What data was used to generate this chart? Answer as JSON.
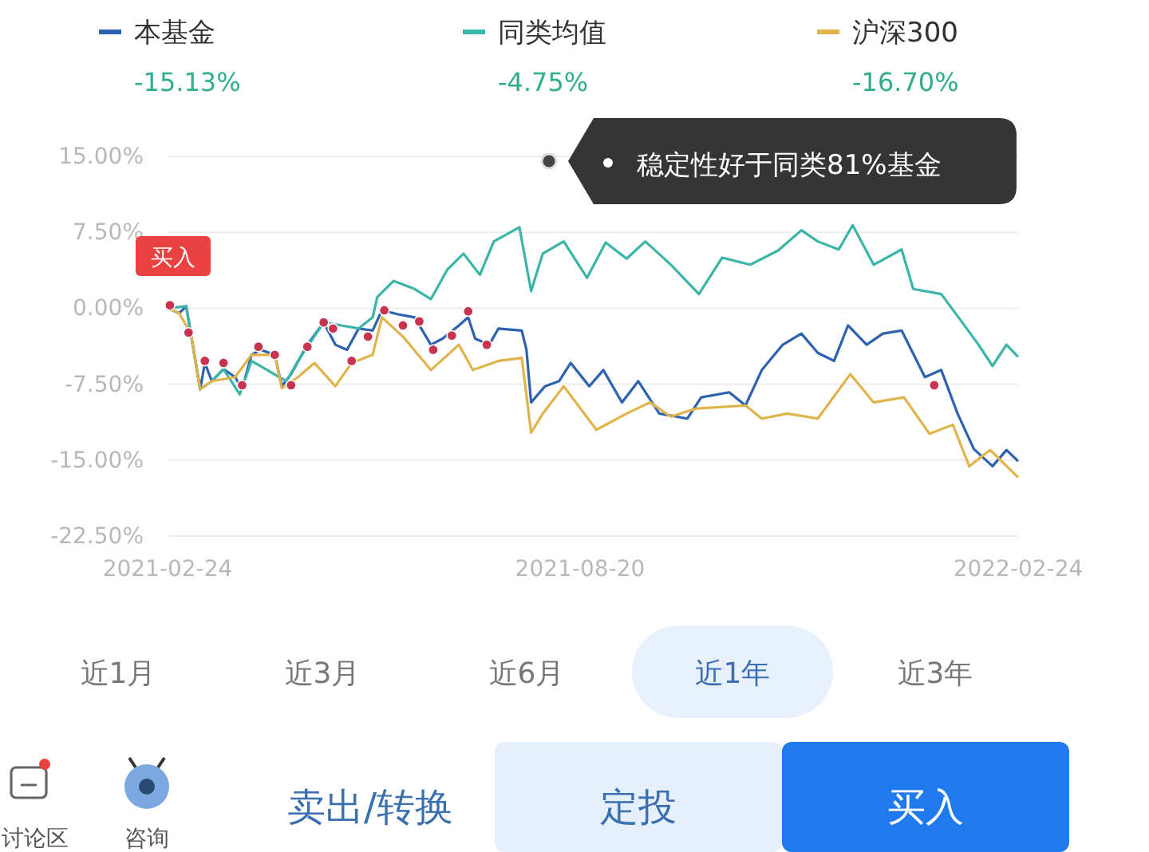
{
  "chart_data": {
    "type": "line",
    "xticks": [
      "2021-02-24",
      "2021-08-20",
      "2022-02-24"
    ],
    "xlim": [
      "2021-02-24",
      "2022-02-24"
    ],
    "ylim": [
      -22.5,
      15
    ],
    "yticks": [
      {
        "value": 15,
        "label": "15.00%"
      },
      {
        "value": 7.5,
        "label": "7.50%"
      },
      {
        "value": 0,
        "label": "0.00%"
      },
      {
        "value": -7.5,
        "label": "-7.50%"
      },
      {
        "value": -15,
        "label": "-15.00%"
      },
      {
        "value": -22.5,
        "label": "-22.50%"
      }
    ],
    "grid": "y",
    "legend": "top",
    "series": [
      {
        "name": "本基金",
        "color": "#2d62b0",
        "x": [
          "2021-02-24",
          "2021-03-01",
          "2021-03-04",
          "2021-03-06",
          "2021-03-10",
          "2021-03-12",
          "2021-03-15",
          "2021-03-20",
          "2021-03-25",
          "2021-03-28",
          "2021-04-01",
          "2021-04-05",
          "2021-04-11",
          "2021-04-14",
          "2021-04-18",
          "2021-04-25",
          "2021-05-02",
          "2021-05-07",
          "2021-05-12",
          "2021-05-17",
          "2021-05-23",
          "2021-05-27",
          "2021-06-03",
          "2021-06-10",
          "2021-06-17",
          "2021-06-22",
          "2021-06-29",
          "2021-07-03",
          "2021-07-06",
          "2021-07-12",
          "2021-07-16",
          "2021-07-26",
          "2021-07-28",
          "2021-07-30",
          "2021-08-05",
          "2021-08-11",
          "2021-08-16",
          "2021-08-24",
          "2021-08-30",
          "2021-09-07",
          "2021-09-14",
          "2021-09-23",
          "2021-10-05",
          "2021-10-11",
          "2021-10-23",
          "2021-10-30",
          "2021-11-06",
          "2021-11-15",
          "2021-11-23",
          "2021-11-30",
          "2021-12-07",
          "2021-12-13",
          "2021-12-21",
          "2021-12-28",
          "2022-01-05",
          "2022-01-15",
          "2022-01-22",
          "2022-01-29",
          "2022-02-05",
          "2022-02-13",
          "2022-02-19",
          "2022-02-24"
        ],
        "values": [
          0,
          -0.5,
          0.2,
          -2.5,
          -8,
          -5.4,
          -7.2,
          -6,
          -6.8,
          -8,
          -4.6,
          -4.1,
          -4.6,
          -7.7,
          -6.5,
          -3.6,
          -1.4,
          -3.6,
          -4.1,
          -2,
          -2.2,
          -0.2,
          -0.6,
          -0.9,
          -3.6,
          -3,
          -1.7,
          -0.9,
          -3,
          -3.6,
          -2,
          -2.2,
          -4.1,
          -9.3,
          -7.7,
          -7.2,
          -5.4,
          -7.7,
          -6.1,
          -9.3,
          -7.2,
          -10.4,
          -10.9,
          -8.8,
          -8.3,
          -9.6,
          -6.1,
          -3.6,
          -2.5,
          -4.4,
          -5.2,
          -1.7,
          -3.6,
          -2.5,
          -2.2,
          -6.8,
          -6.1,
          -10.4,
          -13.9,
          -15.6,
          -14,
          -15.1
        ]
      },
      {
        "name": "同类均值",
        "color": "#3ab5a8",
        "x": [
          "2021-02-24",
          "2021-03-04",
          "2021-03-10",
          "2021-03-15",
          "2021-03-20",
          "2021-03-27",
          "2021-04-01",
          "2021-04-16",
          "2021-04-21",
          "2021-05-02",
          "2021-05-17",
          "2021-05-23",
          "2021-05-25",
          "2021-06-01",
          "2021-06-10",
          "2021-06-17",
          "2021-06-24",
          "2021-07-01",
          "2021-07-08",
          "2021-07-14",
          "2021-07-25",
          "2021-07-30",
          "2021-08-04",
          "2021-08-13",
          "2021-08-23",
          "2021-08-31",
          "2021-09-09",
          "2021-09-17",
          "2021-09-28",
          "2021-10-10",
          "2021-10-20",
          "2021-11-01",
          "2021-11-13",
          "2021-11-23",
          "2021-11-30",
          "2021-12-09",
          "2021-12-15",
          "2021-12-24",
          "2022-01-05",
          "2022-01-10",
          "2022-01-22",
          "2022-01-31",
          "2022-02-07",
          "2022-02-13",
          "2022-02-19",
          "2022-02-24"
        ],
        "values": [
          0,
          0.2,
          -8,
          -7.2,
          -6,
          -8.5,
          -5.2,
          -7.2,
          -5.2,
          -1.4,
          -2,
          -0.9,
          1.1,
          2.7,
          1.9,
          0.9,
          3.8,
          5.4,
          3.3,
          6.6,
          8,
          1.7,
          5.4,
          6.6,
          3,
          6.5,
          4.9,
          6.6,
          4.3,
          1.4,
          5,
          4.3,
          5.7,
          7.7,
          6.6,
          5.8,
          8.2,
          4.3,
          5.8,
          1.9,
          1.4,
          -1.4,
          -3.6,
          -5.7,
          -3.6,
          -4.8
        ]
      },
      {
        "name": "沪深300",
        "color": "#e0b44a",
        "x": [
          "2021-02-24",
          "2021-03-01",
          "2021-03-06",
          "2021-03-10",
          "2021-03-15",
          "2021-03-25",
          "2021-04-01",
          "2021-04-11",
          "2021-04-14",
          "2021-04-21",
          "2021-04-28",
          "2021-05-07",
          "2021-05-14",
          "2021-05-23",
          "2021-05-27",
          "2021-06-05",
          "2021-06-17",
          "2021-06-29",
          "2021-07-05",
          "2021-07-16",
          "2021-07-26",
          "2021-07-30",
          "2021-08-04",
          "2021-08-13",
          "2021-08-27",
          "2021-09-09",
          "2021-09-19",
          "2021-09-28",
          "2021-10-09",
          "2021-10-30",
          "2021-11-06",
          "2021-11-17",
          "2021-11-30",
          "2021-12-14",
          "2021-12-24",
          "2022-01-06",
          "2022-01-17",
          "2022-01-27",
          "2022-02-03",
          "2022-02-12",
          "2022-02-24"
        ],
        "values": [
          0,
          -0.5,
          -2.5,
          -8,
          -7.2,
          -6.8,
          -4.6,
          -4.6,
          -7.9,
          -6.8,
          -5.4,
          -7.7,
          -5.4,
          -4.6,
          -0.9,
          -2.8,
          -6.1,
          -3.6,
          -6.1,
          -5.2,
          -4.9,
          -12.3,
          -10.4,
          -7.7,
          -12,
          -10.4,
          -9.3,
          -10.7,
          -9.9,
          -9.6,
          -10.9,
          -10.4,
          -10.9,
          -6.5,
          -9.3,
          -8.8,
          -12.4,
          -11.5,
          -15.6,
          -14,
          -16.7
        ]
      },
      {
        "type": "scatter",
        "marker": "circle",
        "color": "#c8344f",
        "x": [
          "2021-02-25",
          "2021-03-05",
          "2021-03-12",
          "2021-03-20",
          "2021-03-28",
          "2021-04-04",
          "2021-04-11",
          "2021-04-18",
          "2021-04-25",
          "2021-05-02",
          "2021-05-06",
          "2021-05-14",
          "2021-05-21",
          "2021-05-28",
          "2021-06-05",
          "2021-06-12",
          "2021-06-18",
          "2021-06-26",
          "2021-07-03",
          "2021-07-11",
          "2022-01-19"
        ],
        "values": [
          0.3,
          -2.4,
          -5.2,
          -5.4,
          -7.6,
          -3.8,
          -4.6,
          -7.6,
          -3.8,
          -1.4,
          -2,
          -5.2,
          -2.8,
          -0.2,
          -1.7,
          -1.3,
          -4.1,
          -2.7,
          -0.3,
          -3.6,
          -7.6
        ]
      }
    ],
    "annotations": [
      "-15.13%",
      "-4.75%",
      "-16.70%",
      "买入",
      "稳定性好于同类81%基金",
      "近1月",
      "近3月",
      "近6月",
      "近1年",
      "近3年",
      "讨论区",
      "咨询",
      "卖出/转换",
      "定投",
      "买入"
    ]
  }
}
